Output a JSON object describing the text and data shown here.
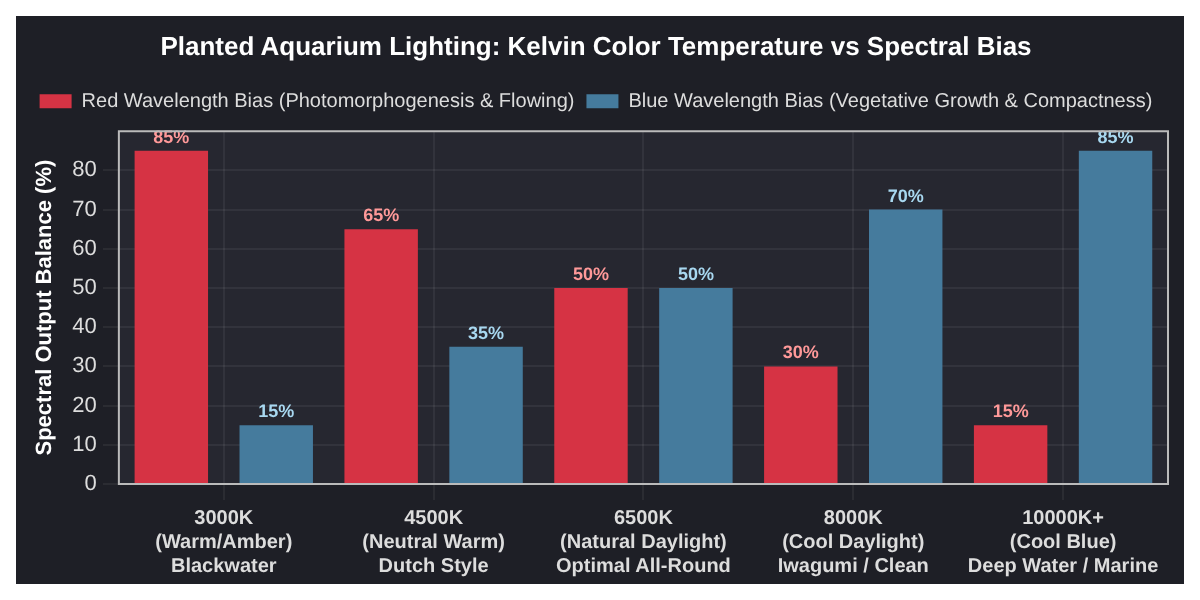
{
  "chart_data": {
    "type": "bar",
    "title": "Planted Aquarium Lighting: Kelvin Color Temperature vs Spectral Bias",
    "ylabel": "Spectral Output Balance (%)",
    "categories": [
      "3000K\n(Warm/Amber)\nBlackwater",
      "4500K\n(Neutral Warm)\nDutch Style",
      "6500K\n(Natural Daylight)\nOptimal All-Round",
      "8000K\n(Cool Daylight)\nIwagumi / Clean",
      "10000K+\n(Cool Blue)\nDeep Water / Marine"
    ],
    "series": [
      {
        "name": "Red Wavelength Bias (Photomorphogenesis & Flowing)",
        "color": "#d63344",
        "values": [
          85,
          65,
          50,
          30,
          15
        ],
        "value_labels": [
          "85%",
          "65%",
          "50%",
          "30%",
          "15%"
        ]
      },
      {
        "name": "Blue Wavelength Bias (Vegetative Growth & Compactness)",
        "color": "#457b9d",
        "values": [
          15,
          35,
          50,
          70,
          85
        ],
        "value_labels": [
          "15%",
          "35%",
          "50%",
          "70%",
          "85%"
        ]
      }
    ],
    "ylim": [
      0,
      90
    ],
    "yticks": [
      0,
      10,
      20,
      30,
      40,
      50,
      60,
      70,
      80
    ],
    "grid": true,
    "legend": "top"
  }
}
